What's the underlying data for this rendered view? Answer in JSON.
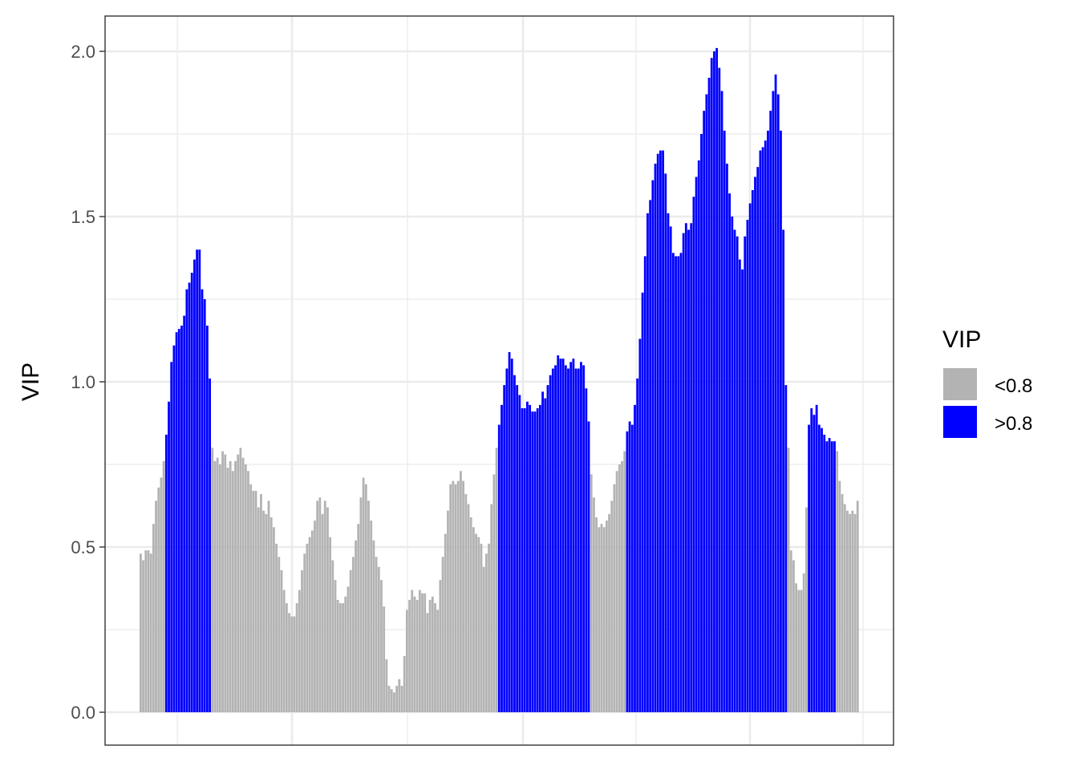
{
  "chart_data": {
    "type": "bar",
    "ylabel": "VIP",
    "xlabel": "",
    "ylim": [
      -0.1,
      2.1
    ],
    "yticks": [
      0.0,
      0.5,
      1.0,
      1.5,
      2.0
    ],
    "ytick_labels": [
      "0.0",
      "0.5",
      "1.0",
      "1.5",
      "2.0"
    ],
    "grid": true,
    "legend": {
      "title": "VIP",
      "placement": "right",
      "entries": [
        {
          "label": "<0.8",
          "color": "#b3b3b3"
        },
        {
          "label": ">0.8",
          "color": "#0000ff"
        }
      ]
    },
    "threshold": 0.8,
    "values": [
      0.48,
      0.46,
      0.49,
      0.49,
      0.48,
      0.57,
      0.64,
      0.68,
      0.71,
      0.76,
      0.84,
      0.94,
      1.06,
      1.11,
      1.15,
      1.16,
      1.17,
      1.2,
      1.28,
      1.3,
      1.33,
      1.37,
      1.4,
      1.4,
      1.28,
      1.25,
      1.17,
      1.01,
      0.8,
      0.76,
      0.77,
      0.75,
      0.79,
      0.78,
      0.74,
      0.76,
      0.73,
      0.76,
      0.78,
      0.8,
      0.77,
      0.75,
      0.73,
      0.69,
      0.67,
      0.67,
      0.62,
      0.66,
      0.61,
      0.6,
      0.64,
      0.59,
      0.56,
      0.51,
      0.47,
      0.43,
      0.37,
      0.33,
      0.3,
      0.29,
      0.29,
      0.33,
      0.37,
      0.43,
      0.48,
      0.51,
      0.53,
      0.55,
      0.58,
      0.64,
      0.65,
      0.6,
      0.64,
      0.62,
      0.53,
      0.46,
      0.4,
      0.34,
      0.33,
      0.33,
      0.35,
      0.38,
      0.43,
      0.47,
      0.52,
      0.57,
      0.65,
      0.71,
      0.69,
      0.64,
      0.58,
      0.52,
      0.47,
      0.44,
      0.4,
      0.32,
      0.16,
      0.08,
      0.07,
      0.06,
      0.08,
      0.1,
      0.08,
      0.17,
      0.31,
      0.34,
      0.37,
      0.35,
      0.34,
      0.37,
      0.36,
      0.36,
      0.3,
      0.34,
      0.35,
      0.33,
      0.31,
      0.4,
      0.47,
      0.54,
      0.61,
      0.69,
      0.7,
      0.69,
      0.7,
      0.73,
      0.7,
      0.66,
      0.63,
      0.59,
      0.56,
      0.54,
      0.53,
      0.51,
      0.44,
      0.48,
      0.51,
      0.63,
      0.72,
      0.8,
      0.87,
      0.93,
      0.99,
      1.04,
      1.09,
      1.07,
      1.02,
      0.99,
      0.96,
      0.92,
      0.92,
      0.94,
      0.93,
      0.91,
      0.91,
      0.92,
      0.93,
      0.97,
      0.95,
      0.99,
      1.02,
      1.04,
      1.05,
      1.08,
      1.07,
      1.07,
      1.05,
      1.04,
      1.06,
      1.07,
      1.04,
      1.04,
      1.06,
      1.05,
      0.98,
      0.88,
      0.72,
      0.65,
      0.59,
      0.56,
      0.57,
      0.56,
      0.58,
      0.6,
      0.64,
      0.69,
      0.73,
      0.75,
      0.76,
      0.79,
      0.85,
      0.88,
      0.87,
      0.93,
      1.01,
      1.13,
      1.27,
      1.38,
      1.51,
      1.55,
      1.61,
      1.66,
      1.69,
      1.7,
      1.7,
      1.63,
      1.51,
      1.47,
      1.39,
      1.38,
      1.38,
      1.39,
      1.45,
      1.48,
      1.46,
      1.48,
      1.56,
      1.62,
      1.67,
      1.75,
      1.82,
      1.87,
      1.92,
      1.98,
      2.0,
      2.01,
      1.95,
      1.88,
      1.76,
      1.66,
      1.57,
      1.5,
      1.46,
      1.44,
      1.37,
      1.34,
      1.44,
      1.49,
      1.54,
      1.58,
      1.62,
      1.65,
      1.7,
      1.71,
      1.73,
      1.76,
      1.82,
      1.88,
      1.93,
      1.87,
      1.76,
      1.46,
      0.99,
      0.8,
      0.49,
      0.46,
      0.39,
      0.37,
      0.37,
      0.42,
      0.62,
      0.87,
      0.92,
      0.9,
      0.93,
      0.87,
      0.86,
      0.84,
      0.82,
      0.83,
      0.82,
      0.82,
      0.79,
      0.7,
      0.66,
      0.63,
      0.61,
      0.6,
      0.61,
      0.6,
      0.64
    ]
  }
}
